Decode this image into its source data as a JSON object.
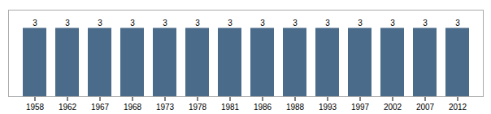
{
  "chart_data": {
    "type": "bar",
    "categories": [
      "1958",
      "1962",
      "1967",
      "1968",
      "1973",
      "1978",
      "1981",
      "1986",
      "1988",
      "1993",
      "1997",
      "2002",
      "2007",
      "2012"
    ],
    "values": [
      3,
      3,
      3,
      3,
      3,
      3,
      3,
      3,
      3,
      3,
      3,
      3,
      3,
      3
    ],
    "color": "#4a6b8a",
    "ylim": [
      0,
      3.8
    ],
    "data_labels": true,
    "tick_labels": "x"
  }
}
